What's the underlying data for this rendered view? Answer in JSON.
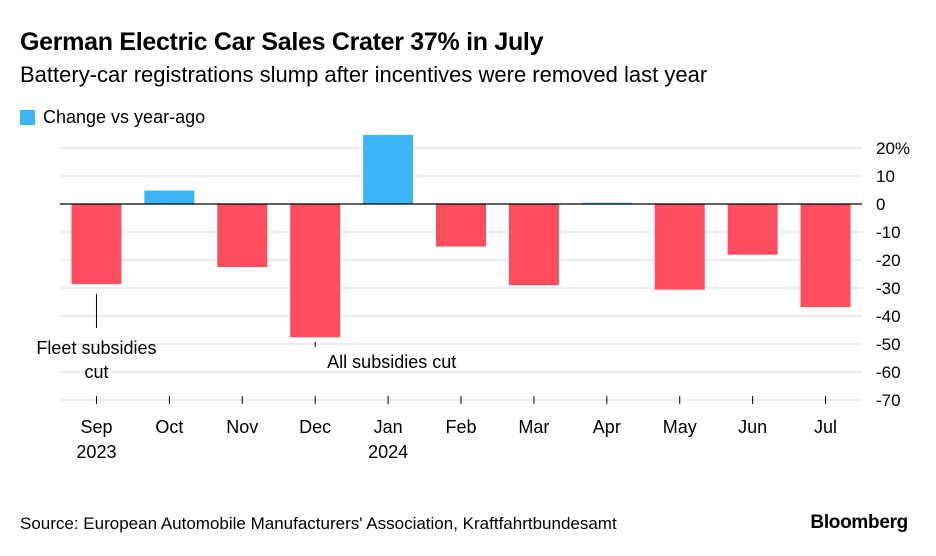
{
  "title": "German Electric Car Sales Crater 37% in July",
  "subtitle": "Battery-car registrations slump after incentives were removed last year",
  "source": "Source: European Automobile Manufacturers' Association, Kraftfahrtbundesamt",
  "brand": "Bloomberg",
  "colors": {
    "positive": "#3db4f5",
    "negative": "#ff4d5e",
    "grid": "#d9d9d9",
    "axis": "#000000"
  },
  "chart_data": {
    "type": "bar",
    "categories": [
      "Sep",
      "Oct",
      "Nov",
      "Dec",
      "Jan",
      "Feb",
      "Mar",
      "Apr",
      "May",
      "Jun",
      "Jul"
    ],
    "category_sublabels": [
      "2023",
      "",
      "",
      "",
      "2024",
      "",
      "",
      "",
      "",
      "",
      ""
    ],
    "series": [
      {
        "name": "Change vs year-ago",
        "values": [
          -28.6,
          4.8,
          -22.5,
          -47.6,
          24.7,
          -15.2,
          -29.0,
          0.2,
          -30.6,
          -18.1,
          -36.8
        ]
      }
    ],
    "ylim": [
      -70,
      20
    ],
    "yticks": [
      20,
      10,
      0,
      -10,
      -20,
      -30,
      -40,
      -50,
      -60,
      -70
    ],
    "ytick_labels": [
      "20%",
      "10",
      "0",
      "-10",
      "-20",
      "-30",
      "-40",
      "-50",
      "-60",
      "-70"
    ],
    "annotations": [
      {
        "category": "Sep",
        "lines": [
          "Fleet subsidies",
          "cut"
        ]
      },
      {
        "category": "Dec",
        "lines": [
          "All subsidies cut"
        ]
      }
    ],
    "legend": "top-left",
    "grid": true
  }
}
